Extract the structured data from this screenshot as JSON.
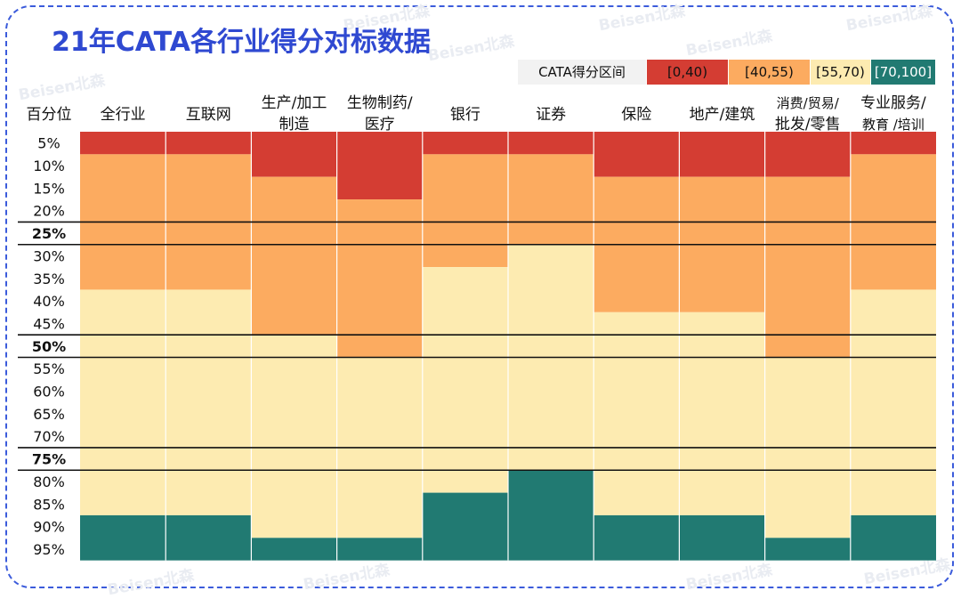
{
  "title": "21年CATA各行业得分对标数据",
  "watermark": "Beisen北森",
  "legend": {
    "title": "CATA得分区间",
    "items": [
      {
        "label": "[0,40)",
        "color": "#d43d33",
        "text_color": "#111111"
      },
      {
        "label": "[40,55)",
        "color": "#fcab60",
        "text_color": "#111111"
      },
      {
        "label": "[55,70)",
        "color": "#fdebb1",
        "text_color": "#111111"
      },
      {
        "label": "[70,100]",
        "color": "#217a72",
        "text_color": "#ffffff"
      }
    ]
  },
  "chart_data": {
    "type": "heatmap",
    "title": "21年CATA各行业得分对标数据",
    "row_header": "百分位",
    "percentiles": [
      "5%",
      "10%",
      "15%",
      "20%",
      "25%",
      "30%",
      "35%",
      "40%",
      "45%",
      "50%",
      "55%",
      "60%",
      "65%",
      "70%",
      "75%",
      "80%",
      "85%",
      "90%",
      "95%"
    ],
    "bold_percentiles": [
      "25%",
      "50%",
      "75%"
    ],
    "categories": [
      {
        "name": "全行业",
        "lines": [
          "全行业"
        ]
      },
      {
        "name": "互联网",
        "lines": [
          "互联网"
        ]
      },
      {
        "name": "生产/加工制造",
        "lines": [
          "生产/加工",
          "制造"
        ]
      },
      {
        "name": "生物制药/医疗",
        "lines": [
          "生物制药/",
          "医疗"
        ]
      },
      {
        "name": "银行",
        "lines": [
          "银行"
        ]
      },
      {
        "name": "证券",
        "lines": [
          "证券"
        ]
      },
      {
        "name": "保险",
        "lines": [
          "保险"
        ]
      },
      {
        "name": "地产/建筑",
        "lines": [
          "地产/建筑"
        ]
      },
      {
        "name": "消费/贸易/批发/零售",
        "lines": [
          "消费/贸易/",
          "批发/零售"
        ]
      },
      {
        "name": "专业服务/教育/培训",
        "lines": [
          "专业服务/",
          "教育 /培训"
        ]
      }
    ],
    "band_index": {
      "0": "[0,40)",
      "1": "[40,55)",
      "2": "[55,70)",
      "3": "[70,100]"
    },
    "bands": [
      [
        0,
        1,
        1,
        1,
        1,
        1,
        1,
        2,
        2,
        2,
        2,
        2,
        2,
        2,
        2,
        2,
        2,
        3,
        3
      ],
      [
        0,
        1,
        1,
        1,
        1,
        1,
        1,
        2,
        2,
        2,
        2,
        2,
        2,
        2,
        2,
        2,
        2,
        3,
        3
      ],
      [
        0,
        0,
        1,
        1,
        1,
        1,
        1,
        1,
        1,
        2,
        2,
        2,
        2,
        2,
        2,
        2,
        2,
        2,
        3
      ],
      [
        0,
        0,
        0,
        1,
        1,
        1,
        1,
        1,
        1,
        1,
        2,
        2,
        2,
        2,
        2,
        2,
        2,
        2,
        3
      ],
      [
        0,
        1,
        1,
        1,
        1,
        1,
        2,
        2,
        2,
        2,
        2,
        2,
        2,
        2,
        2,
        2,
        3,
        3,
        3
      ],
      [
        0,
        1,
        1,
        1,
        1,
        2,
        2,
        2,
        2,
        2,
        2,
        2,
        2,
        2,
        2,
        3,
        3,
        3,
        3
      ],
      [
        0,
        0,
        1,
        1,
        1,
        1,
        1,
        1,
        2,
        2,
        2,
        2,
        2,
        2,
        2,
        2,
        2,
        3,
        3
      ],
      [
        0,
        0,
        1,
        1,
        1,
        1,
        1,
        1,
        2,
        2,
        2,
        2,
        2,
        2,
        2,
        2,
        2,
        3,
        3
      ],
      [
        0,
        0,
        1,
        1,
        1,
        1,
        1,
        1,
        1,
        1,
        2,
        2,
        2,
        2,
        2,
        2,
        2,
        2,
        3
      ],
      [
        0,
        1,
        1,
        1,
        1,
        1,
        1,
        2,
        2,
        2,
        2,
        2,
        2,
        2,
        2,
        2,
        2,
        3,
        3
      ]
    ]
  }
}
